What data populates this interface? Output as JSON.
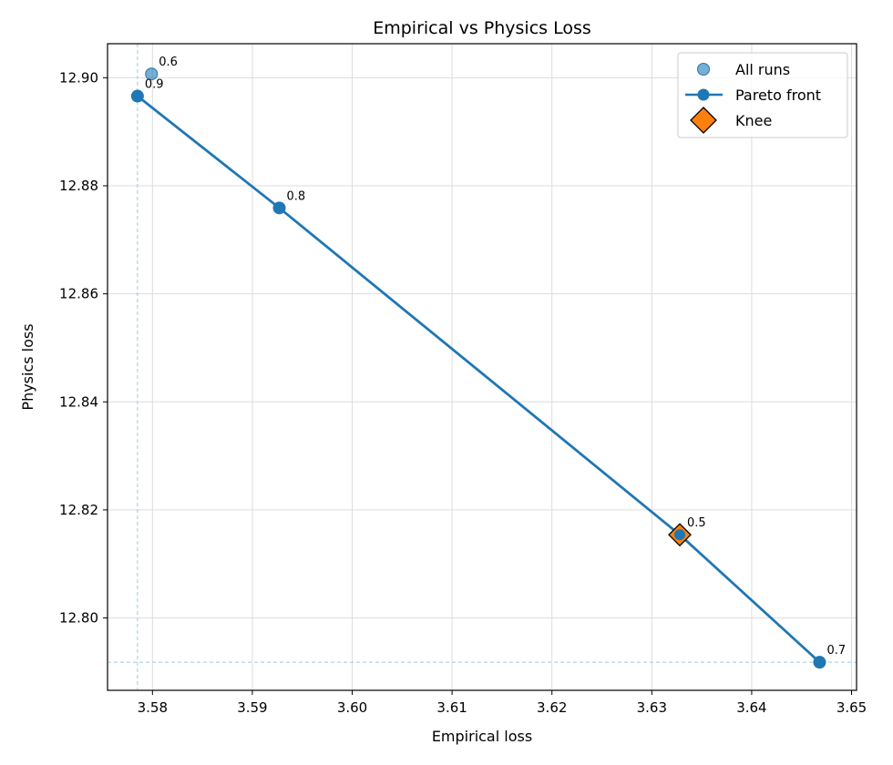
{
  "chart_data": {
    "type": "scatter",
    "title": "Empirical vs Physics Loss",
    "xlabel": "Empirical loss",
    "ylabel": "Physics loss",
    "xlim": [
      3.5755,
      3.6505
    ],
    "ylim": [
      12.7866,
      12.9063
    ],
    "xticks": [
      3.58,
      3.59,
      3.6,
      3.61,
      3.62,
      3.63,
      3.64,
      3.65
    ],
    "yticks": [
      12.8,
      12.82,
      12.84,
      12.86,
      12.88,
      12.9
    ],
    "grid": true,
    "legend_position": "top-right",
    "reference_lines": {
      "x": 3.5785,
      "y": 12.7918
    },
    "series": [
      {
        "name": "All runs",
        "kind": "scatter",
        "color": "#1f77b4",
        "points": [
          {
            "x": 3.5799,
            "y": 12.9007,
            "label": "0.6"
          },
          {
            "x": 3.5785,
            "y": 12.8966,
            "label": "0.9"
          },
          {
            "x": 3.5927,
            "y": 12.8759,
            "label": "0.8"
          },
          {
            "x": 3.6328,
            "y": 12.8154,
            "label": "0.5"
          },
          {
            "x": 3.6468,
            "y": 12.7918,
            "label": "0.7"
          }
        ]
      },
      {
        "name": "Pareto front",
        "kind": "line",
        "color": "#1f77b4",
        "points": [
          {
            "x": 3.5785,
            "y": 12.8966
          },
          {
            "x": 3.5927,
            "y": 12.8759
          },
          {
            "x": 3.6328,
            "y": 12.8154
          },
          {
            "x": 3.6468,
            "y": 12.7918
          }
        ]
      },
      {
        "name": "Knee",
        "kind": "marker",
        "color": "#ff7f0e",
        "points": [
          {
            "x": 3.6328,
            "y": 12.8154
          }
        ]
      }
    ]
  }
}
